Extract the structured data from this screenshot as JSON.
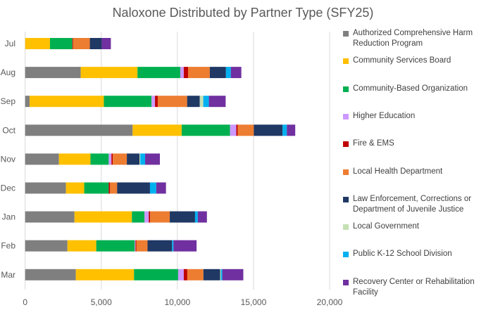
{
  "chart_data": {
    "type": "bar",
    "orientation": "horizontal",
    "stacked": true,
    "title": "Naloxone Distributed by Partner Type (SFY25)",
    "categories": [
      "Jul",
      "Aug",
      "Sep",
      "Oct",
      "Nov",
      "Dec",
      "Jan",
      "Feb",
      "Mar"
    ],
    "xlim": [
      0,
      20000
    ],
    "xticks": [
      0,
      5000,
      10000,
      15000,
      20000
    ],
    "xtick_labels": [
      "0",
      "5,000",
      "10,000",
      "15,000",
      "20,000"
    ],
    "grid": "vertical",
    "legend_position": "right",
    "series": [
      {
        "name": "Authorized Comprehensive Harm Reduction Program",
        "color": "#7f7f7f",
        "values": [
          0,
          3650,
          290,
          7060,
          2220,
          2680,
          3240,
          2780,
          3330
        ]
      },
      {
        "name": "Community Services Board",
        "color": "#ffc000",
        "values": [
          1630,
          3730,
          4880,
          3220,
          2070,
          1200,
          3770,
          1890,
          3820
        ]
      },
      {
        "name": "Community-Based Organization",
        "color": "#00b050",
        "values": [
          1470,
          2810,
          3130,
          3180,
          1200,
          1610,
          830,
          2530,
          2900
        ]
      },
      {
        "name": "Higher Education",
        "color": "#cc99ff",
        "values": [
          0,
          230,
          230,
          410,
          180,
          0,
          280,
          50,
          370
        ]
      },
      {
        "name": "Fire & EMS",
        "color": "#c00000",
        "values": [
          50,
          280,
          180,
          90,
          90,
          90,
          90,
          50,
          230
        ]
      },
      {
        "name": "Local Health Department",
        "color": "#ed7d31",
        "values": [
          1100,
          1430,
          1930,
          1060,
          920,
          460,
          1290,
          740,
          1060
        ]
      },
      {
        "name": "Law Enforcement, Corrections or Department of Juvenile Justice",
        "color": "#1f3864",
        "values": [
          780,
          1060,
          830,
          1890,
          830,
          2160,
          1660,
          1610,
          1100
        ]
      },
      {
        "name": "Local Government",
        "color": "#c5e0b4",
        "values": [
          0,
          0,
          230,
          0,
          50,
          0,
          0,
          0,
          50
        ]
      },
      {
        "name": "Public K-12 School Division",
        "color": "#00b0f0",
        "values": [
          0,
          320,
          370,
          280,
          320,
          410,
          180,
          90,
          90
        ]
      },
      {
        "name": "Recovery Center or Rehabilitation Facility",
        "color": "#7030a0",
        "values": [
          600,
          690,
          1100,
          550,
          970,
          640,
          600,
          1520,
          1380
        ]
      }
    ],
    "legend_lines": [
      [
        "Authorized Comprehensive Harm",
        "Reduction Program"
      ],
      [
        "Community Services Board"
      ],
      [
        "Community-Based Organization"
      ],
      [
        "Higher Education"
      ],
      [
        "Fire & EMS"
      ],
      [
        "Local Health Department"
      ],
      [
        "Law Enforcement, Corrections or",
        "Department of Juvenile Justice"
      ],
      [
        "Local Government"
      ],
      [
        "Public K-12 School Division"
      ],
      [
        "Recovery Center or Rehabilitation",
        "Facility"
      ]
    ]
  }
}
